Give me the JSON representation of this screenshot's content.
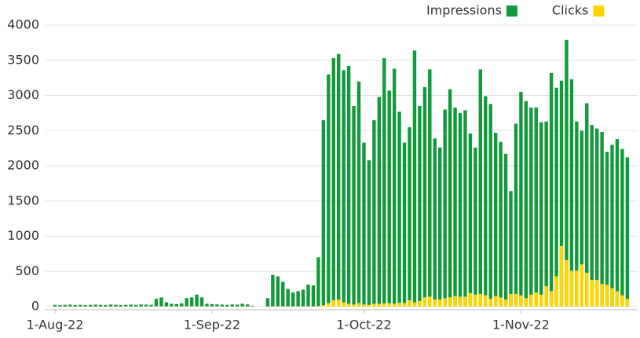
{
  "chart_data": {
    "type": "bar",
    "x": [
      "2022-08-01",
      "2022-08-02",
      "2022-08-03",
      "2022-08-04",
      "2022-08-05",
      "2022-08-06",
      "2022-08-07",
      "2022-08-08",
      "2022-08-09",
      "2022-08-10",
      "2022-08-11",
      "2022-08-12",
      "2022-08-13",
      "2022-08-14",
      "2022-08-15",
      "2022-08-16",
      "2022-08-17",
      "2022-08-18",
      "2022-08-19",
      "2022-08-20",
      "2022-08-21",
      "2022-08-22",
      "2022-08-23",
      "2022-08-24",
      "2022-08-25",
      "2022-08-26",
      "2022-08-27",
      "2022-08-28",
      "2022-08-29",
      "2022-08-30",
      "2022-08-31",
      "2022-09-01",
      "2022-09-02",
      "2022-09-03",
      "2022-09-04",
      "2022-09-05",
      "2022-09-06",
      "2022-09-07",
      "2022-09-08",
      "2022-09-09",
      "2022-09-10",
      "2022-09-11",
      "2022-09-12",
      "2022-09-13",
      "2022-09-14",
      "2022-09-15",
      "2022-09-16",
      "2022-09-17",
      "2022-09-18",
      "2022-09-19",
      "2022-09-20",
      "2022-09-21",
      "2022-09-22",
      "2022-09-23",
      "2022-09-24",
      "2022-09-25",
      "2022-09-26",
      "2022-09-27",
      "2022-09-28",
      "2022-09-29",
      "2022-09-30",
      "2022-10-01",
      "2022-10-02",
      "2022-10-03",
      "2022-10-04",
      "2022-10-05",
      "2022-10-06",
      "2022-10-07",
      "2022-10-08",
      "2022-10-09",
      "2022-10-10",
      "2022-10-11",
      "2022-10-12",
      "2022-10-13",
      "2022-10-14",
      "2022-10-15",
      "2022-10-16",
      "2022-10-17",
      "2022-10-18",
      "2022-10-19",
      "2022-10-20",
      "2022-10-21",
      "2022-10-22",
      "2022-10-23",
      "2022-10-24",
      "2022-10-25",
      "2022-10-26",
      "2022-10-27",
      "2022-10-28",
      "2022-10-29",
      "2022-10-30",
      "2022-10-31",
      "2022-11-01",
      "2022-11-02",
      "2022-11-03",
      "2022-11-04",
      "2022-11-05",
      "2022-11-06",
      "2022-11-07",
      "2022-11-08",
      "2022-11-09",
      "2022-11-10",
      "2022-11-11",
      "2022-11-12",
      "2022-11-13",
      "2022-11-14",
      "2022-11-15",
      "2022-11-16",
      "2022-11-17",
      "2022-11-18",
      "2022-11-19",
      "2022-11-20",
      "2022-11-21",
      "2022-11-22"
    ],
    "series": [
      {
        "name": "Impressions",
        "color": "#12993a",
        "values": [
          25,
          22,
          25,
          28,
          22,
          25,
          22,
          25,
          28,
          25,
          22,
          28,
          25,
          22,
          25,
          28,
          25,
          30,
          28,
          25,
          110,
          130,
          60,
          40,
          35,
          45,
          120,
          130,
          170,
          130,
          40,
          35,
          30,
          28,
          25,
          30,
          28,
          40,
          30,
          10,
          0,
          0,
          120,
          450,
          430,
          350,
          250,
          200,
          220,
          240,
          310,
          300,
          700,
          2650,
          3300,
          3530,
          3590,
          3360,
          3420,
          2850,
          3200,
          2330,
          2080,
          2650,
          2980,
          3530,
          3070,
          3380,
          2770,
          2330,
          2550,
          3640,
          2850,
          3120,
          3370,
          2390,
          2260,
          2800,
          3090,
          2830,
          2750,
          2790,
          2460,
          2260,
          3370,
          2990,
          2880,
          2470,
          2340,
          2170,
          1640,
          2600,
          3050,
          2920,
          2830,
          2830,
          2620,
          2630,
          3320,
          3110,
          3210,
          3790,
          3230,
          2630,
          2500,
          2890,
          2580,
          2530,
          2480,
          2200,
          2300,
          2380,
          2240,
          2120
        ]
      },
      {
        "name": "Clicks",
        "color": "#ffd500",
        "values": [
          2,
          2,
          2,
          2,
          2,
          2,
          2,
          2,
          2,
          2,
          2,
          2,
          2,
          2,
          2,
          2,
          2,
          2,
          2,
          2,
          3,
          3,
          2,
          2,
          2,
          2,
          3,
          3,
          3,
          3,
          2,
          2,
          2,
          2,
          2,
          2,
          2,
          2,
          2,
          1,
          0,
          0,
          2,
          4,
          4,
          3,
          3,
          2,
          2,
          3,
          3,
          3,
          8,
          20,
          50,
          90,
          100,
          60,
          40,
          30,
          50,
          30,
          25,
          40,
          40,
          45,
          50,
          40,
          55,
          50,
          90,
          60,
          80,
          130,
          140,
          100,
          100,
          120,
          130,
          150,
          140,
          140,
          190,
          170,
          180,
          160,
          110,
          150,
          130,
          100,
          180,
          180,
          160,
          120,
          170,
          200,
          170,
          290,
          220,
          430,
          860,
          660,
          510,
          510,
          600,
          480,
          380,
          380,
          320,
          310,
          260,
          220,
          160,
          110
        ]
      }
    ],
    "ylim": [
      0,
      4000
    ],
    "yticks": [
      0,
      500,
      1000,
      1500,
      2000,
      2500,
      3000,
      3500,
      4000
    ],
    "xticks": [
      {
        "value": "2022-08-01",
        "label": "1-Aug-22"
      },
      {
        "value": "2022-09-01",
        "label": "1-Sep-22"
      },
      {
        "value": "2022-10-01",
        "label": "1-Oct-22"
      },
      {
        "value": "2022-11-01",
        "label": "1-Nov-22"
      }
    ],
    "grid": true,
    "legend": "top-right"
  }
}
